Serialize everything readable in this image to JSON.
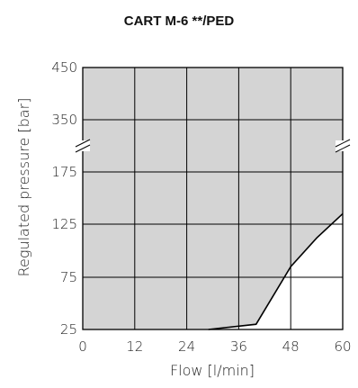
{
  "chart_data": {
    "type": "area",
    "title": "CART  M-6 **/PED",
    "xlabel": "Flow [l/min]",
    "ylabel": "Regulated pressure [bar]",
    "xlim": [
      0,
      60
    ],
    "x_ticks": [
      "0",
      "12",
      "24",
      "36",
      "48",
      "60"
    ],
    "y_ticks": [
      "25",
      "75",
      "125",
      "175",
      "350",
      "450"
    ],
    "y_axis_break": true,
    "grid": true,
    "shaded_region": "operating limit (area above and left of curve)",
    "colors": {
      "fill": "#d4d4d4",
      "line": "#000000",
      "grid": "#000000"
    },
    "series": [
      {
        "x": [
          29,
          40,
          48,
          54,
          60
        ],
        "y": [
          "25",
          "30",
          "85",
          "112",
          "135"
        ]
      }
    ]
  }
}
